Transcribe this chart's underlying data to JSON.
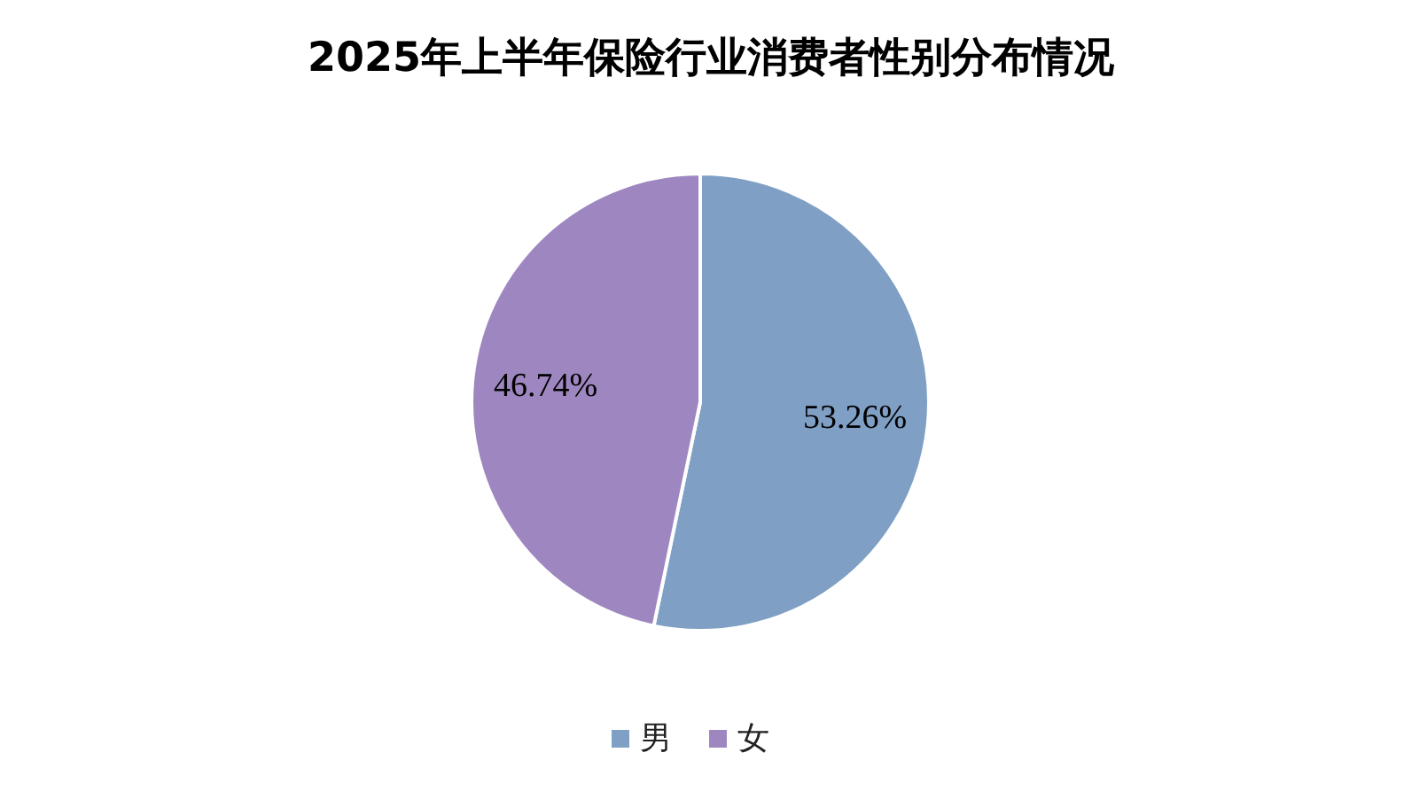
{
  "chart_data": {
    "type": "pie",
    "title": "2025年上半年保险行业消费者性别分布情况",
    "categories": [
      "男",
      "女"
    ],
    "values": [
      53.26,
      46.74
    ],
    "colors": [
      "#7f9fc4",
      "#9e87c0"
    ],
    "value_labels": [
      "53.26%",
      "46.74%"
    ],
    "legend": "bottom"
  }
}
